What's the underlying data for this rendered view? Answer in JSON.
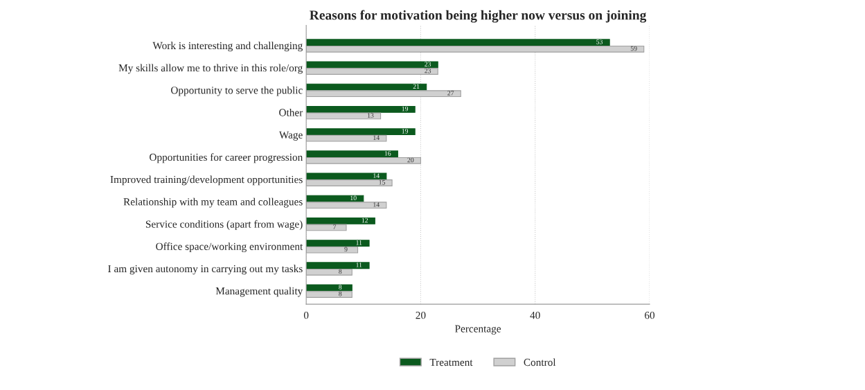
{
  "chart_data": {
    "type": "bar",
    "orientation": "horizontal",
    "title": "Reasons for motivation being higher now versus on joining",
    "xlabel": "Percentage",
    "categories": [
      "Work is interesting and challenging",
      "My skills allow me to thrive in this role/org",
      "Opportunity to serve the public",
      "Other",
      "Wage",
      "Opportunities for career progression",
      "Improved training/development opportunities",
      "Relationship with my team and colleagues",
      "Service conditions (apart from wage)",
      "Office space/working environment",
      "I am given autonomy in carrying out my tasks",
      "Management quality"
    ],
    "series": [
      {
        "name": "Treatment",
        "color": "#0b5a1e",
        "values": [
          53,
          23,
          21,
          19,
          19,
          16,
          14,
          10,
          12,
          11,
          11,
          8
        ]
      },
      {
        "name": "Control",
        "color": "#d0d0d0",
        "values": [
          59,
          23,
          27,
          13,
          14,
          20,
          15,
          14,
          7,
          9,
          8,
          8
        ]
      }
    ],
    "xlim": [
      0,
      60
    ],
    "xticks": [
      0,
      20,
      40,
      60
    ],
    "grid": "x",
    "legend": "bottom",
    "data_labels": true
  }
}
